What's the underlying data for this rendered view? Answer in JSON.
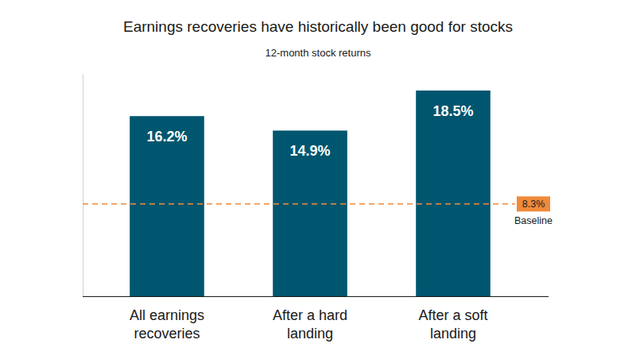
{
  "chart_data": {
    "type": "bar",
    "title": "Earnings recoveries have historically been good for stocks",
    "subtitle": "12-month stock returns",
    "categories": [
      "All earnings recoveries",
      "After a hard landing",
      "After a soft landing"
    ],
    "values": [
      16.2,
      14.9,
      18.5
    ],
    "value_labels": [
      "16.2%",
      "14.9%",
      "18.5%"
    ],
    "color": "#00566f",
    "data_labels": true,
    "tick_labels": "x",
    "grid": false,
    "ylim": [
      0,
      20
    ],
    "yticks": [],
    "reference_line": {
      "value": 8.3,
      "value_label": "8.3%",
      "label": "Baseline",
      "color": "#f08a3a"
    }
  }
}
